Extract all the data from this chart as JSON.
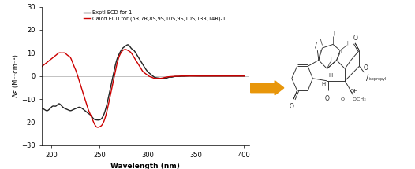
{
  "xlabel": "Wavelength (nm)",
  "ylabel": "Δε (M⁻¹cm⁻¹)",
  "xlim": [
    190,
    405
  ],
  "ylim": [
    -30,
    30
  ],
  "xticks": [
    200,
    250,
    300,
    350,
    400
  ],
  "yticks": [
    -30,
    -20,
    -10,
    0,
    10,
    20,
    30
  ],
  "legend_black": "Exptl ECD for 1",
  "legend_red": "Calcd ECD for (5R,7R,8S,9S,10S,9S,10S,13R,14R)-1",
  "black_color": "#222222",
  "red_color": "#cc0000",
  "arrow_color": "#e8960a",
  "exptl_x": [
    190,
    193,
    196,
    199,
    202,
    205,
    208,
    211,
    214,
    217,
    220,
    223,
    226,
    229,
    232,
    235,
    238,
    241,
    244,
    247,
    250,
    253,
    256,
    259,
    262,
    265,
    268,
    271,
    274,
    277,
    280,
    283,
    286,
    289,
    292,
    295,
    298,
    301,
    304,
    307,
    310,
    313,
    316,
    319,
    322,
    325,
    328,
    331,
    334,
    337,
    340,
    350,
    360,
    370,
    380,
    390,
    400
  ],
  "exptl_y": [
    -14,
    -14.5,
    -15,
    -14,
    -13,
    -13,
    -12,
    -13,
    -14,
    -14.5,
    -15,
    -14.5,
    -14,
    -13.5,
    -14,
    -15,
    -16,
    -17,
    -18.5,
    -19,
    -19,
    -18,
    -15,
    -10,
    -4,
    2,
    7,
    10,
    12,
    13,
    13.5,
    12,
    11,
    9,
    7,
    5,
    3,
    1.5,
    0.5,
    -0.5,
    -0.8,
    -1,
    -1,
    -1,
    -0.5,
    -0.5,
    -0.2,
    -0.2,
    -0.1,
    -0.1,
    0,
    0,
    0,
    0,
    0,
    0,
    0
  ],
  "calcd_x": [
    190,
    193,
    196,
    199,
    202,
    205,
    208,
    211,
    214,
    217,
    220,
    223,
    226,
    229,
    232,
    235,
    238,
    241,
    244,
    247,
    250,
    253,
    256,
    259,
    262,
    265,
    268,
    271,
    274,
    277,
    280,
    283,
    286,
    289,
    292,
    295,
    298,
    301,
    304,
    307,
    310,
    313,
    316,
    319,
    322,
    325,
    328,
    331,
    334,
    337,
    340,
    350,
    360,
    370,
    380,
    390,
    400
  ],
  "calcd_y": [
    4,
    5,
    6,
    7,
    8,
    9,
    10,
    10,
    10,
    9,
    8,
    5,
    2,
    -2,
    -6,
    -10,
    -14,
    -17,
    -20,
    -22,
    -22,
    -21,
    -18,
    -13,
    -7,
    -1,
    5,
    9,
    11,
    11.5,
    11,
    10,
    8,
    6,
    4,
    2,
    1,
    0,
    -0.5,
    -1,
    -1,
    -1,
    -0.8,
    -0.5,
    -0.3,
    -0.2,
    -0.1,
    -0.1,
    0,
    0,
    0,
    0,
    0,
    0,
    0,
    0,
    0
  ]
}
